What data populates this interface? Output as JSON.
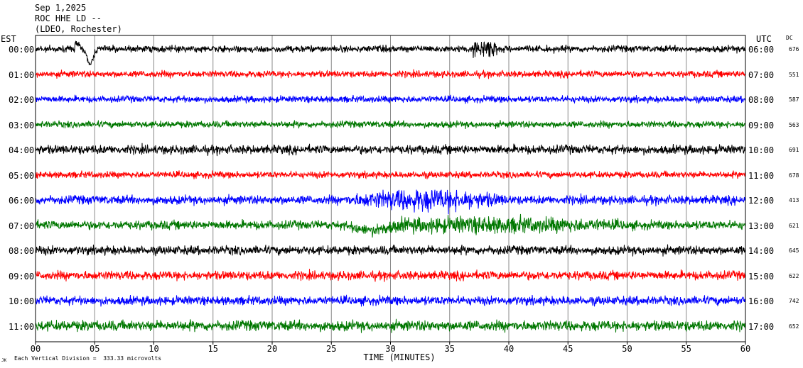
{
  "header": {
    "date": "Sep 1,2025",
    "station": "ROC HHE LD --",
    "network": "(LDEO, Rochester)"
  },
  "left_timezone": "EST",
  "right_timezone": "UTC",
  "dc_label": "DC",
  "footer": {
    "scale_note": "Each Vertical Division =  333.33 microvolts",
    "corner_mark": "JK"
  },
  "chart_data": {
    "type": "line",
    "title": "",
    "xlabel": "TIME (MINUTES)",
    "ylabel": "",
    "xlim": [
      0,
      60
    ],
    "x_ticks": [
      "00",
      "05",
      "10",
      "15",
      "20",
      "25",
      "30",
      "35",
      "40",
      "45",
      "50",
      "55",
      "60"
    ],
    "grid": true,
    "series": [
      {
        "est": "00:00",
        "utc": "06:00",
        "dc": "676",
        "color": "#000000"
      },
      {
        "est": "01:00",
        "utc": "07:00",
        "dc": "551",
        "color": "#ff0000"
      },
      {
        "est": "02:00",
        "utc": "08:00",
        "dc": "587",
        "color": "#0000ff"
      },
      {
        "est": "03:00",
        "utc": "09:00",
        "dc": "563",
        "color": "#007700"
      },
      {
        "est": "04:00",
        "utc": "10:00",
        "dc": "691",
        "color": "#000000"
      },
      {
        "est": "05:00",
        "utc": "11:00",
        "dc": "678",
        "color": "#ff0000"
      },
      {
        "est": "06:00",
        "utc": "12:00",
        "dc": "413",
        "color": "#0000ff"
      },
      {
        "est": "07:00",
        "utc": "13:00",
        "dc": "621",
        "color": "#007700"
      },
      {
        "est": "08:00",
        "utc": "14:00",
        "dc": "645",
        "color": "#000000"
      },
      {
        "est": "09:00",
        "utc": "15:00",
        "dc": "622",
        "color": "#ff0000"
      },
      {
        "est": "10:00",
        "utc": "16:00",
        "dc": "742",
        "color": "#0000ff"
      },
      {
        "est": "11:00",
        "utc": "17:00",
        "dc": "652",
        "color": "#007700"
      }
    ]
  }
}
